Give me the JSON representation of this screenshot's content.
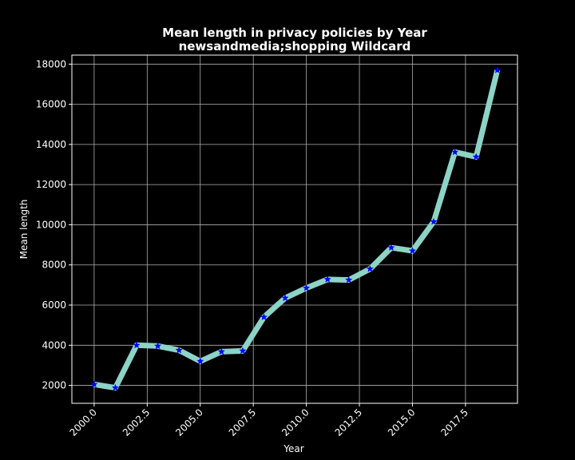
{
  "chart_data": {
    "type": "line",
    "title_line1": "Mean length in privacy policies by Year",
    "title_line2": "newsandmedia;shopping Wildcard",
    "xlabel": "Year",
    "ylabel": "Mean length",
    "xlim": [
      1998.95,
      2019.95
    ],
    "ylim": [
      1108,
      18450
    ],
    "xticks": [
      2000.0,
      2002.5,
      2005.0,
      2007.5,
      2010.0,
      2012.5,
      2015.0,
      2017.5
    ],
    "xtick_labels": [
      "2000.0",
      "2002.5",
      "2005.0",
      "2007.5",
      "2010.0",
      "2012.5",
      "2015.0",
      "2017.5"
    ],
    "yticks": [
      2000,
      4000,
      6000,
      8000,
      10000,
      12000,
      14000,
      16000,
      18000
    ],
    "ytick_labels": [
      "2000",
      "4000",
      "6000",
      "8000",
      "10000",
      "12000",
      "14000",
      "16000",
      "18000"
    ],
    "grid": true,
    "series": [
      {
        "x": [
          2000,
          2001,
          2002,
          2003,
          2004,
          2005,
          2006,
          2007,
          2008,
          2009,
          2010,
          2011,
          2012,
          2013,
          2014,
          2015,
          2016,
          2017,
          2018,
          2019
        ],
        "values": [
          2050,
          1880,
          4000,
          3960,
          3750,
          3200,
          3680,
          3720,
          5400,
          6350,
          6850,
          7280,
          7250,
          7800,
          8860,
          8700,
          10150,
          13620,
          13380,
          17700
        ],
        "line_color": "#8dd3c7",
        "marker_color": "#0000ff",
        "marker": "star"
      }
    ]
  }
}
